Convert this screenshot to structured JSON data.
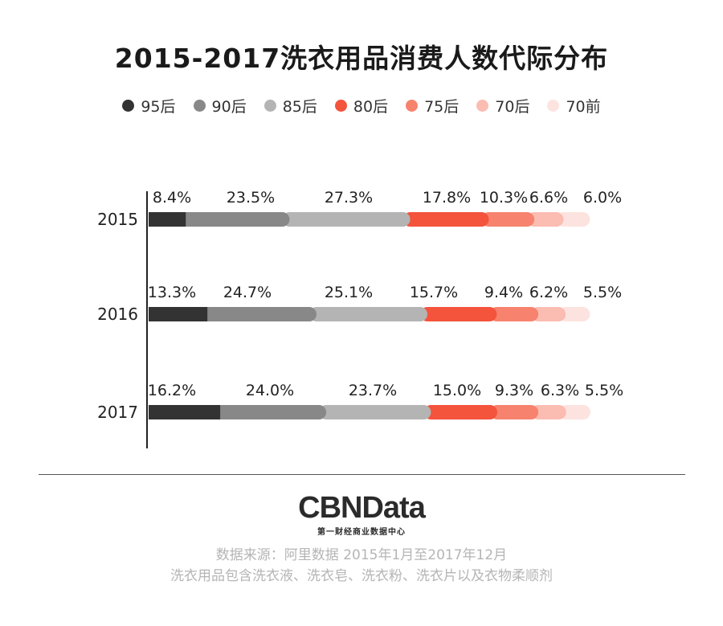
{
  "chart_data": {
    "type": "bar",
    "stacked": true,
    "orientation": "horizontal",
    "title": "2015-2017洗衣用品消费人数代际分布",
    "categories": [
      "2015",
      "2016",
      "2017"
    ],
    "series": [
      {
        "name": "95后",
        "color": "#333333",
        "values": [
          8.4,
          13.3,
          16.2
        ],
        "labels": [
          "8.4%",
          "13.3%",
          "16.2%"
        ]
      },
      {
        "name": "90后",
        "color": "#888888",
        "values": [
          23.5,
          24.7,
          24.0
        ],
        "labels": [
          "23.5%",
          "24.7%",
          "24.0%"
        ]
      },
      {
        "name": "85后",
        "color": "#b4b4b4",
        "values": [
          27.3,
          25.1,
          23.7
        ],
        "labels": [
          "27.3%",
          "25.1%",
          "23.7%"
        ]
      },
      {
        "name": "80后",
        "color": "#f4533c",
        "values": [
          17.8,
          15.7,
          15.0
        ],
        "labels": [
          "17.8%",
          "15.7%",
          "15.0%"
        ]
      },
      {
        "name": "75后",
        "color": "#f7826e",
        "values": [
          10.3,
          9.4,
          9.3
        ],
        "labels": [
          "10.3%",
          "9.4%",
          "9.3%"
        ]
      },
      {
        "name": "70后",
        "color": "#fbbcb2",
        "values": [
          6.6,
          6.2,
          6.3
        ],
        "labels": [
          "6.6%",
          "6.2%",
          "6.3%"
        ]
      },
      {
        "name": "70前",
        "color": "#fde3df",
        "values": [
          6.0,
          5.5,
          5.5
        ],
        "labels": [
          "6.0%",
          "5.5%",
          "5.5%"
        ]
      }
    ],
    "legend_position": "top",
    "grid": false
  },
  "footer": {
    "logo": "CBNData",
    "logo_sub": "第一财经商业数据中心",
    "source_line1": "数据来源：阿里数据   2015年1月至2017年12月",
    "source_line2": "洗衣用品包含洗衣液、洗衣皂、洗衣粉、洗衣片以及衣物柔顺剂"
  }
}
